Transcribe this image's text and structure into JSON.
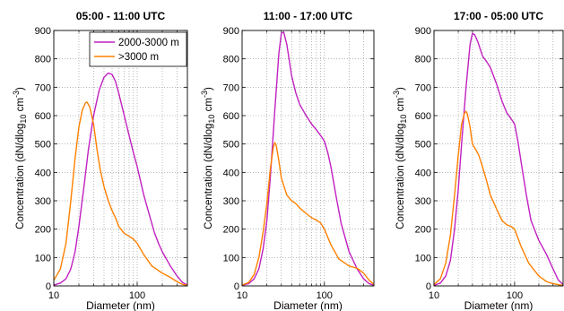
{
  "chart_data": [
    {
      "type": "line",
      "title": "05:00 - 11:00 UTC",
      "xlabel": "Diameter (nm)",
      "ylabel": "Concentration (dN/dlog",
      "ylabel_sub": "10",
      "ylabel_unit": " cm",
      "ylabel_sup": "-3",
      "ylabel_close": ")",
      "xscale": "log",
      "xlim": [
        10,
        400
      ],
      "ylim": [
        0,
        900
      ],
      "xticks": [
        10,
        100
      ],
      "xtick_labels": [
        "10",
        "100"
      ],
      "yticks": [
        0,
        100,
        200,
        300,
        400,
        500,
        600,
        700,
        800,
        900
      ],
      "grid": true,
      "legend": "top-right",
      "series": [
        {
          "name": "2000-3000 m",
          "color": "#c020c0",
          "x": [
            10,
            12,
            14,
            16,
            18,
            20,
            23,
            26,
            30,
            35,
            40,
            45,
            50,
            55,
            60,
            70,
            80,
            90,
            100,
            120,
            140,
            160,
            180,
            200,
            250,
            300,
            350,
            400
          ],
          "y": [
            3,
            10,
            25,
            60,
            120,
            210,
            350,
            480,
            600,
            690,
            735,
            750,
            745,
            720,
            680,
            600,
            530,
            470,
            420,
            320,
            250,
            190,
            150,
            120,
            70,
            35,
            12,
            3
          ]
        },
        {
          "name": ">3000 m",
          "color": "#ff8000",
          "x": [
            10,
            12,
            14,
            16,
            18,
            20,
            22,
            24,
            25,
            27,
            30,
            33,
            36,
            40,
            45,
            50,
            55,
            60,
            70,
            80,
            90,
            100,
            120,
            150,
            200,
            250,
            300,
            350,
            400
          ],
          "y": [
            20,
            60,
            150,
            300,
            450,
            560,
            620,
            645,
            648,
            630,
            570,
            480,
            410,
            350,
            300,
            265,
            240,
            210,
            185,
            175,
            165,
            150,
            110,
            70,
            45,
            30,
            15,
            5,
            2
          ]
        }
      ]
    },
    {
      "type": "line",
      "title": "11:00 - 17:00 UTC",
      "xlabel": "Diameter (nm)",
      "ylabel": "Concentration (dN/dlog",
      "ylabel_sub": "10",
      "ylabel_unit": " cm",
      "ylabel_sup": "-3",
      "ylabel_close": ")",
      "xscale": "log",
      "xlim": [
        10,
        400
      ],
      "ylim": [
        0,
        900
      ],
      "xticks": [
        10,
        100
      ],
      "xtick_labels": [
        "10",
        "100"
      ],
      "yticks": [
        0,
        100,
        200,
        300,
        400,
        500,
        600,
        700,
        800,
        900
      ],
      "grid": true,
      "series": [
        {
          "name": "2000-3000 m",
          "color": "#c020c0",
          "x": [
            10,
            12,
            14,
            16,
            18,
            20,
            22,
            25,
            28,
            30,
            32,
            35,
            40,
            45,
            50,
            60,
            70,
            80,
            90,
            100,
            110,
            120,
            140,
            160,
            200,
            250,
            300,
            350,
            400
          ],
          "y": [
            2,
            8,
            25,
            60,
            130,
            230,
            380,
            620,
            820,
            890,
            895,
            850,
            740,
            680,
            640,
            600,
            570,
            550,
            530,
            510,
            470,
            420,
            310,
            220,
            120,
            60,
            25,
            8,
            2
          ]
        },
        {
          "name": ">3000 m",
          "color": "#ff8000",
          "x": [
            10,
            12,
            14,
            16,
            18,
            20,
            22,
            24,
            25,
            26,
            28,
            30,
            35,
            40,
            45,
            50,
            60,
            70,
            80,
            90,
            100,
            120,
            150,
            200,
            250,
            300,
            350,
            400
          ],
          "y": [
            3,
            12,
            40,
            100,
            190,
            290,
            410,
            490,
            505,
            495,
            440,
            380,
            320,
            300,
            290,
            275,
            255,
            240,
            232,
            222,
            200,
            145,
            95,
            70,
            62,
            45,
            20,
            5
          ]
        }
      ]
    },
    {
      "type": "line",
      "title": "17:00 - 05:00 UTC",
      "xlabel": "Diameter (nm)",
      "ylabel": "Concentration (dN/dlog",
      "ylabel_sub": "10",
      "ylabel_unit": " cm",
      "ylabel_sup": "-3",
      "ylabel_close": ")",
      "xscale": "log",
      "xlim": [
        10,
        400
      ],
      "ylim": [
        0,
        900
      ],
      "xticks": [
        10,
        100
      ],
      "xtick_labels": [
        "10",
        "100"
      ],
      "yticks": [
        0,
        100,
        200,
        300,
        400,
        500,
        600,
        700,
        800,
        900
      ],
      "grid": true,
      "series": [
        {
          "name": "2000-3000 m",
          "color": "#c020c0",
          "x": [
            10,
            12,
            14,
            16,
            18,
            20,
            22,
            25,
            28,
            30,
            32,
            35,
            40,
            45,
            50,
            60,
            70,
            80,
            90,
            100,
            110,
            120,
            140,
            160,
            200,
            250,
            300,
            350,
            400
          ],
          "y": [
            2,
            10,
            35,
            90,
            200,
            340,
            500,
            700,
            850,
            890,
            885,
            860,
            810,
            790,
            770,
            710,
            650,
            610,
            590,
            570,
            510,
            440,
            320,
            230,
            160,
            110,
            60,
            20,
            5
          ]
        },
        {
          "name": ">3000 m",
          "color": "#ff8000",
          "x": [
            10,
            12,
            14,
            16,
            18,
            20,
            22,
            24,
            25,
            26,
            28,
            30,
            33,
            36,
            40,
            45,
            50,
            60,
            70,
            80,
            90,
            100,
            120,
            150,
            200,
            250,
            300,
            350,
            400
          ],
          "y": [
            5,
            25,
            80,
            180,
            320,
            460,
            570,
            610,
            615,
            605,
            560,
            500,
            480,
            460,
            420,
            370,
            320,
            270,
            230,
            215,
            210,
            200,
            140,
            80,
            35,
            15,
            8,
            4,
            2
          ]
        }
      ]
    }
  ]
}
